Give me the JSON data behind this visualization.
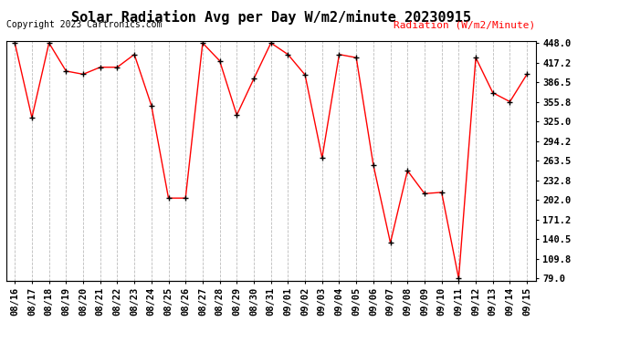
{
  "title": "Solar Radiation Avg per Day W/m2/minute 20230915",
  "copyright": "Copyright 2023 Cartronics.com",
  "ylabel": "Radiation (W/m2/Minute)",
  "dates": [
    "08/16",
    "08/17",
    "08/18",
    "08/19",
    "08/20",
    "08/21",
    "08/22",
    "08/23",
    "08/24",
    "08/25",
    "08/26",
    "08/27",
    "08/28",
    "08/29",
    "08/30",
    "08/31",
    "09/01",
    "09/02",
    "09/03",
    "09/04",
    "09/05",
    "09/06",
    "09/07",
    "09/08",
    "09/09",
    "09/10",
    "09/11",
    "09/12",
    "09/13",
    "09/14",
    "09/15"
  ],
  "values": [
    448.0,
    331.0,
    448.0,
    404.0,
    399.0,
    410.0,
    410.0,
    430.0,
    350.0,
    205.0,
    205.0,
    448.0,
    420.0,
    335.0,
    392.0,
    448.0,
    430.0,
    398.0,
    268.0,
    430.0,
    425.0,
    257.0,
    135.0,
    248.0,
    212.0,
    214.0,
    79.0,
    425.0,
    370.0,
    356.0,
    399.0
  ],
  "yticks": [
    79.0,
    109.8,
    140.5,
    171.2,
    202.0,
    232.8,
    263.5,
    294.2,
    325.0,
    355.8,
    386.5,
    417.2,
    448.0
  ],
  "line_color": "red",
  "marker_color": "black",
  "bg_color": "#ffffff",
  "grid_color": "#bbbbbb",
  "title_fontsize": 11,
  "copyright_fontsize": 7,
  "ylabel_fontsize": 8,
  "tick_fontsize": 7.5
}
